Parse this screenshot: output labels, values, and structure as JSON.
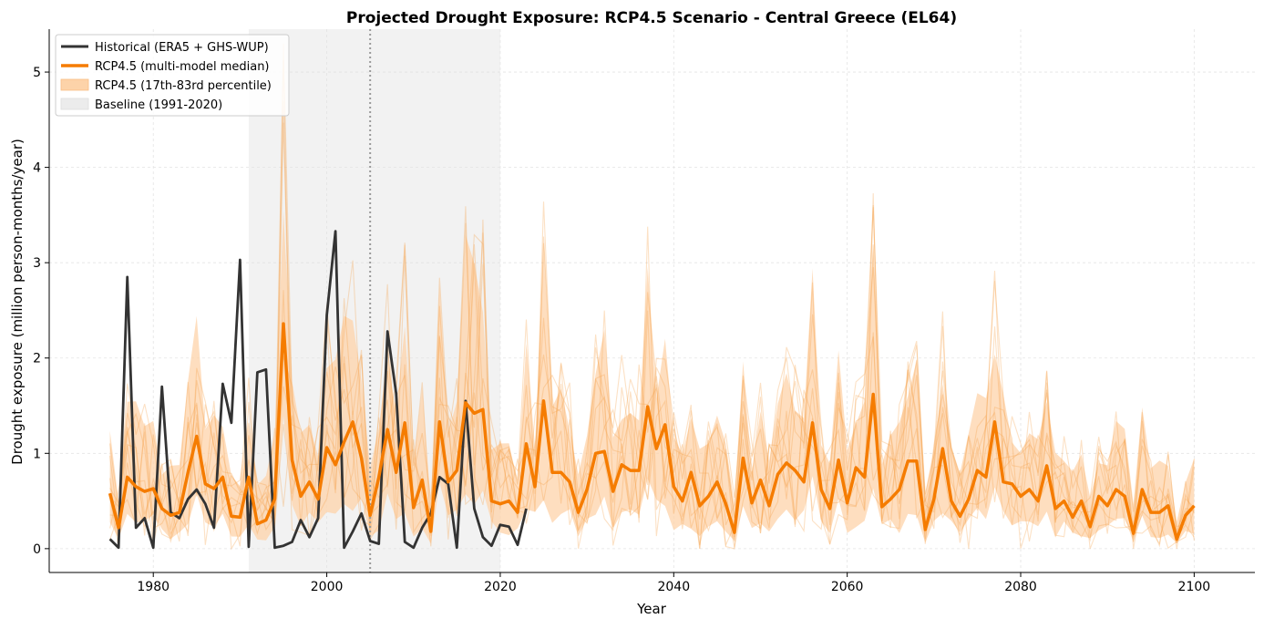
{
  "chart_data": {
    "type": "line",
    "title": "Projected Drought Exposure: RCP4.5 Scenario - Central Greece (EL64)",
    "xlabel": "Year",
    "ylabel": "Drought exposure (million person-months/year)",
    "xlim": [
      1968,
      2107
    ],
    "ylim": [
      -0.25,
      5.45
    ],
    "xticks": [
      1980,
      2000,
      2020,
      2040,
      2060,
      2080,
      2100
    ],
    "yticks": [
      0,
      1,
      2,
      3,
      4,
      5
    ],
    "grid": true,
    "legend_position": "top-left",
    "reference_line_year": 2005,
    "baseline_period": [
      1991,
      2020
    ],
    "legend": [
      {
        "label": "Historical (ERA5 + GHS-WUP)",
        "kind": "line",
        "color": "#333333"
      },
      {
        "label": "RCP4.5 (multi-model median)",
        "kind": "line",
        "color": "#f57c00"
      },
      {
        "label": "RCP4.5 (17th-83rd percentile)",
        "kind": "patch",
        "color": "#fdd3a9"
      },
      {
        "label": "Baseline (1991-2020)",
        "kind": "patch",
        "color": "#e8e8e8"
      }
    ],
    "series": [
      {
        "name": "Historical (ERA5 + GHS-WUP)",
        "color": "#333333",
        "x": [
          1975,
          1976,
          1977,
          1978,
          1979,
          1980,
          1981,
          1982,
          1983,
          1984,
          1985,
          1986,
          1987,
          1988,
          1989,
          1990,
          1991,
          1992,
          1993,
          1994,
          1995,
          1996,
          1997,
          1998,
          1999,
          2000,
          2001,
          2002,
          2003,
          2004,
          2005,
          2006,
          2007,
          2008,
          2009,
          2010,
          2011,
          2012,
          2013,
          2014,
          2015,
          2016,
          2017,
          2018,
          2019,
          2020,
          2021,
          2022,
          2023
        ],
        "values": [
          0.1,
          0.01,
          2.85,
          0.22,
          0.32,
          0.01,
          1.7,
          0.38,
          0.32,
          0.52,
          0.62,
          0.47,
          0.22,
          1.73,
          1.32,
          3.03,
          0.02,
          1.85,
          1.88,
          0.01,
          0.03,
          0.07,
          0.3,
          0.12,
          0.32,
          2.45,
          3.33,
          0.01,
          0.18,
          0.37,
          0.08,
          0.05,
          2.28,
          1.63,
          0.07,
          0.01,
          0.22,
          0.37,
          0.75,
          0.68,
          0.01,
          1.55,
          0.42,
          0.12,
          0.03,
          0.25,
          0.23,
          0.04,
          0.42
        ]
      },
      {
        "name": "RCP4.5 (multi-model median)",
        "color": "#f57c00",
        "x": [
          1975,
          1976,
          1977,
          1978,
          1979,
          1980,
          1981,
          1982,
          1983,
          1984,
          1985,
          1986,
          1987,
          1988,
          1989,
          1990,
          1991,
          1992,
          1993,
          1994,
          1995,
          1996,
          1997,
          1998,
          1999,
          2000,
          2001,
          2002,
          2003,
          2004,
          2005,
          2006,
          2007,
          2008,
          2009,
          2010,
          2011,
          2012,
          2013,
          2014,
          2015,
          2016,
          2017,
          2018,
          2019,
          2020,
          2021,
          2022,
          2023,
          2024,
          2025,
          2026,
          2027,
          2028,
          2029,
          2030,
          2031,
          2032,
          2033,
          2034,
          2035,
          2036,
          2037,
          2038,
          2039,
          2040,
          2041,
          2042,
          2043,
          2044,
          2045,
          2046,
          2047,
          2048,
          2049,
          2050,
          2051,
          2052,
          2053,
          2054,
          2055,
          2056,
          2057,
          2058,
          2059,
          2060,
          2061,
          2062,
          2063,
          2064,
          2065,
          2066,
          2067,
          2068,
          2069,
          2070,
          2071,
          2072,
          2073,
          2074,
          2075,
          2076,
          2077,
          2078,
          2079,
          2080,
          2081,
          2082,
          2083,
          2084,
          2085,
          2086,
          2087,
          2088,
          2089,
          2090,
          2091,
          2092,
          2093,
          2094,
          2095,
          2096,
          2097,
          2098,
          2099,
          2100
        ],
        "values": [
          0.58,
          0.22,
          0.75,
          0.65,
          0.6,
          0.63,
          0.42,
          0.35,
          0.38,
          0.8,
          1.18,
          0.68,
          0.63,
          0.75,
          0.34,
          0.33,
          0.75,
          0.26,
          0.3,
          0.52,
          2.36,
          0.93,
          0.55,
          0.7,
          0.52,
          1.06,
          0.88,
          1.12,
          1.33,
          0.95,
          0.35,
          0.75,
          1.25,
          0.8,
          1.32,
          0.43,
          0.72,
          0.18,
          1.33,
          0.7,
          0.82,
          1.53,
          1.42,
          1.46,
          0.5,
          0.47,
          0.5,
          0.38,
          1.1,
          0.65,
          1.55,
          0.8,
          0.8,
          0.7,
          0.38,
          0.62,
          1.0,
          1.02,
          0.6,
          0.88,
          0.82,
          0.82,
          1.49,
          1.05,
          1.3,
          0.65,
          0.5,
          0.8,
          0.45,
          0.55,
          0.7,
          0.47,
          0.17,
          0.95,
          0.48,
          0.72,
          0.45,
          0.78,
          0.9,
          0.82,
          0.7,
          1.32,
          0.62,
          0.42,
          0.93,
          0.48,
          0.85,
          0.75,
          1.62,
          0.44,
          0.52,
          0.62,
          0.92,
          0.92,
          0.2,
          0.52,
          1.05,
          0.5,
          0.34,
          0.52,
          0.82,
          0.75,
          1.33,
          0.7,
          0.68,
          0.55,
          0.62,
          0.5,
          0.87,
          0.42,
          0.5,
          0.33,
          0.5,
          0.23,
          0.55,
          0.45,
          0.62,
          0.55,
          0.16,
          0.62,
          0.38,
          0.38,
          0.45,
          0.1,
          0.35,
          0.45
        ]
      }
    ]
  }
}
